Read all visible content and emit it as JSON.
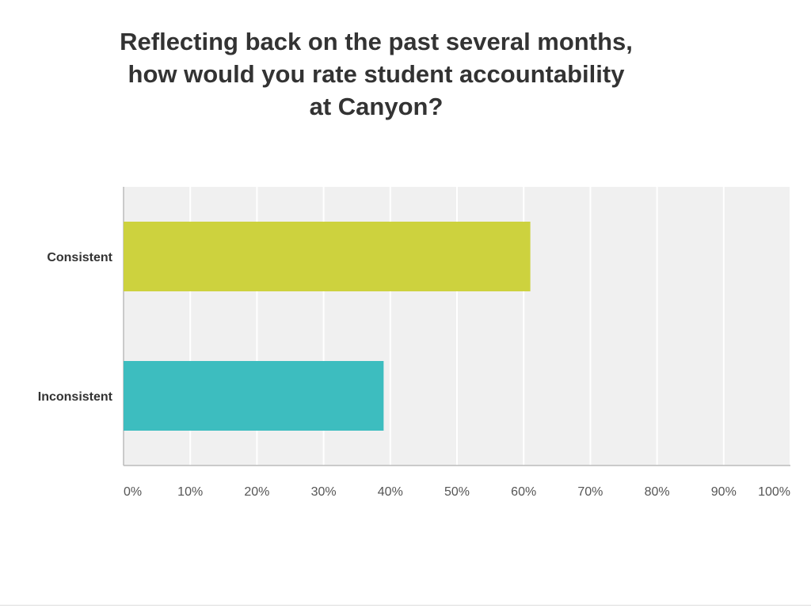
{
  "chart_data": {
    "type": "bar",
    "orientation": "horizontal",
    "title_lines": [
      "Reflecting back on the past several months,",
      "how would you rate student accountability",
      "at Canyon?"
    ],
    "categories": [
      "Consistent",
      "Inconsistent"
    ],
    "values": [
      61,
      39
    ],
    "unit": "%",
    "xlabel": "",
    "ylabel": "",
    "xlim": [
      0,
      100
    ],
    "x_ticks": [
      "0%",
      "10%",
      "20%",
      "30%",
      "40%",
      "50%",
      "60%",
      "70%",
      "80%",
      "90%",
      "100%"
    ],
    "grid": true,
    "legend": "none",
    "colors": {
      "bars": [
        "#cdd23e",
        "#3dbdbf"
      ],
      "plot_background": "#f0f0f0",
      "gridline": "#ffffff",
      "axis": "#bbbbbb",
      "text": "#333333",
      "tick_text": "#555555"
    }
  }
}
